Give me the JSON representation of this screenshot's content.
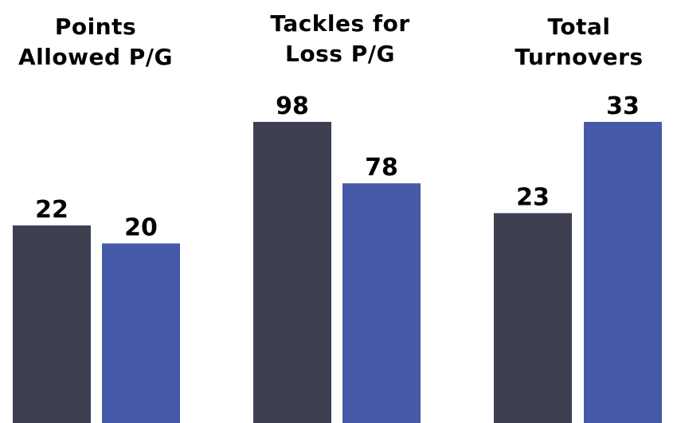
{
  "chart_data": {
    "type": "bar",
    "colors": [
      "#3f3f52",
      "#4659a8"
    ],
    "panels": [
      {
        "title_lines": [
          "Points",
          "Allowed P/G"
        ],
        "values": [
          22,
          20
        ],
        "value_labels": [
          "22",
          "20"
        ]
      },
      {
        "title_lines": [
          "Tackles for",
          "Loss P/G"
        ],
        "values": [
          98,
          78
        ],
        "value_labels": [
          "98",
          "78"
        ]
      },
      {
        "title_lines": [
          "Total",
          "Turnovers"
        ],
        "values": [
          23,
          33
        ],
        "value_labels": [
          "23",
          "33"
        ]
      }
    ]
  }
}
